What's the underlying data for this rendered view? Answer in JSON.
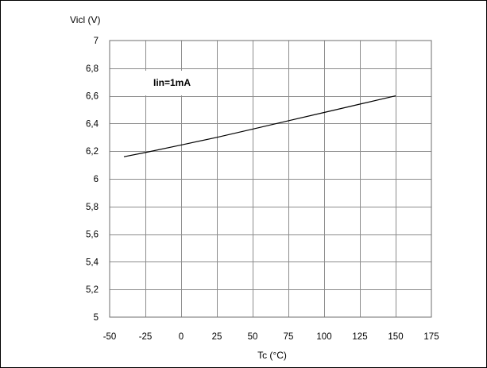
{
  "chart_data": {
    "type": "line",
    "title": "",
    "xlabel": "Tc (°C)",
    "ylabel": "Vicl (V)",
    "xlim": [
      -50,
      175
    ],
    "ylim": [
      5,
      7
    ],
    "x_ticks": [
      -50,
      -25,
      0,
      25,
      50,
      75,
      100,
      125,
      150,
      175
    ],
    "x_tick_labels": [
      "-50",
      "-25",
      "0",
      "25",
      "50",
      "75",
      "100",
      "125",
      "150",
      "175"
    ],
    "y_ticks": [
      5,
      5.2,
      5.4,
      5.6,
      5.8,
      6,
      6.2,
      6.4,
      6.6,
      6.8,
      7
    ],
    "y_tick_labels": [
      "5",
      "5,2",
      "5,4",
      "5,6",
      "5,8",
      "6",
      "6,2",
      "6,4",
      "6,6",
      "6,8",
      "7"
    ],
    "grid": true,
    "legend": "none",
    "annotation": "Iin=1mA",
    "series": [
      {
        "x": [
          -40,
          -25,
          0,
          25,
          50,
          75,
          100,
          125,
          150
        ],
        "values": [
          6.16,
          6.19,
          6.245,
          6.3,
          6.36,
          6.42,
          6.48,
          6.54,
          6.6
        ]
      }
    ],
    "colors": {
      "line": "#000000",
      "grid": "#8c8c8c",
      "frame": "#000000",
      "background": "#ffffff"
    }
  }
}
